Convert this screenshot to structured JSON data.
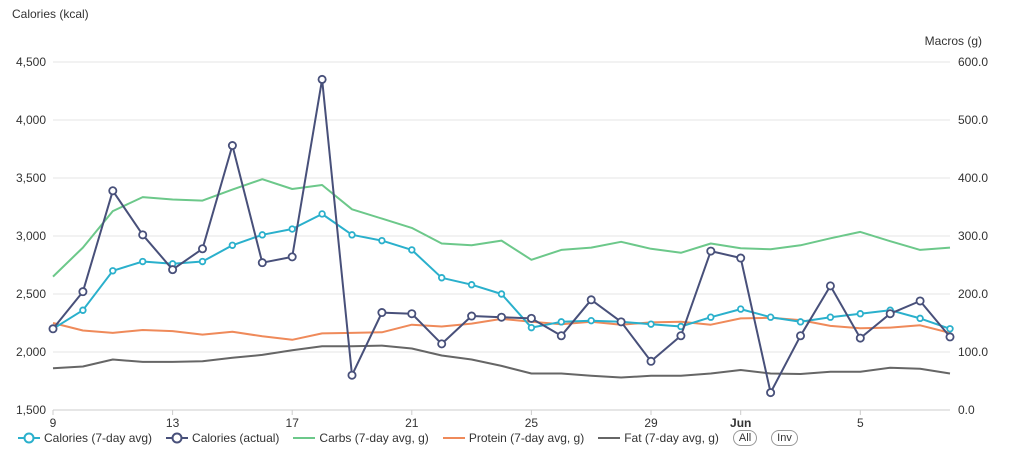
{
  "chart_data": {
    "type": "line",
    "y_left_title": "Calories (kcal)",
    "y_right_title": "Macros (g)",
    "y_left_range": [
      1500,
      4500
    ],
    "y_right_range": [
      0,
      600
    ],
    "y_left_ticks": [
      "1,500",
      "2,000",
      "2,500",
      "3,000",
      "3,500",
      "4,000",
      "4,500"
    ],
    "y_right_ticks": [
      "0.0",
      "100.0",
      "200.0",
      "300.0",
      "400.0",
      "500.0",
      "600.0"
    ],
    "x_start": "May 9",
    "x_end": "Jun 8",
    "x_ticks": [
      {
        "day": 0,
        "label": "9",
        "bold": false
      },
      {
        "day": 4,
        "label": "13",
        "bold": false
      },
      {
        "day": 8,
        "label": "17",
        "bold": false
      },
      {
        "day": 12,
        "label": "21",
        "bold": false
      },
      {
        "day": 16,
        "label": "25",
        "bold": false
      },
      {
        "day": 20,
        "label": "29",
        "bold": false
      },
      {
        "day": 23,
        "label": "Jun",
        "bold": true
      },
      {
        "day": 27,
        "label": "5",
        "bold": false
      }
    ],
    "grid": true,
    "legend_position": "bottom-left",
    "series": [
      {
        "name": "Carbs (7-day avg, g)",
        "axis": "right",
        "color": "#6cc88a",
        "markers": false,
        "values": [
          230,
          280,
          343,
          367,
          363,
          361,
          380,
          398,
          381,
          388,
          346,
          330,
          314,
          287,
          284,
          292,
          259,
          276,
          280,
          290,
          278,
          271,
          287,
          279,
          277,
          284,
          296,
          307,
          291,
          276,
          280
        ]
      },
      {
        "name": "Protein (7-day avg, g)",
        "axis": "right",
        "color": "#ef8a5a",
        "markers": false,
        "values": [
          150,
          137,
          133,
          138,
          136,
          130,
          135,
          127,
          121,
          132,
          133,
          134,
          147,
          144,
          149,
          157,
          152,
          148,
          152,
          147,
          151,
          152,
          147,
          158,
          159,
          155,
          145,
          141,
          142,
          146,
          133
        ]
      },
      {
        "name": "Fat (7-day avg, g)",
        "axis": "right",
        "color": "#666666",
        "markers": false,
        "values": [
          72,
          75,
          87,
          83,
          83,
          84,
          90,
          95,
          103,
          110,
          110,
          111,
          106,
          94,
          87,
          76,
          63,
          63,
          59,
          56,
          59,
          59,
          63,
          69,
          63,
          62,
          66,
          66,
          73,
          71,
          63
        ]
      },
      {
        "name": "Calories (7-day avg)",
        "axis": "left",
        "color": "#2ab0cc",
        "markers": true,
        "values": [
          2200,
          2360,
          2700,
          2780,
          2760,
          2780,
          2920,
          3010,
          3060,
          3190,
          3010,
          2960,
          2880,
          2640,
          2580,
          2500,
          2210,
          2260,
          2270,
          2260,
          2240,
          2220,
          2300,
          2370,
          2300,
          2260,
          2300,
          2330,
          2360,
          2290,
          2200
        ]
      },
      {
        "name": "Calories (actual)",
        "axis": "left",
        "color": "#48507a",
        "markers": true,
        "values": [
          2200,
          2520,
          3390,
          3010,
          2710,
          2890,
          3780,
          2770,
          2820,
          4350,
          1800,
          2340,
          2330,
          2070,
          2310,
          2300,
          2290,
          2140,
          2450,
          2260,
          1920,
          2140,
          2870,
          2810,
          1650,
          2140,
          2570,
          2120,
          2330,
          2440,
          2130
        ]
      }
    ]
  },
  "legend": {
    "items": [
      {
        "label": "Calories (7-day avg)",
        "color": "#2ab0cc",
        "kind": "line-marker"
      },
      {
        "label": "Calories (actual)",
        "color": "#48507a",
        "kind": "line-marker"
      },
      {
        "label": "Carbs (7-day avg, g)",
        "color": "#6cc88a",
        "kind": "line"
      },
      {
        "label": "Protein (7-day avg, g)",
        "color": "#ef8a5a",
        "kind": "line"
      },
      {
        "label": "Fat (7-day avg, g)",
        "color": "#666666",
        "kind": "line"
      }
    ],
    "all_label": "All",
    "inv_label": "Inv"
  }
}
